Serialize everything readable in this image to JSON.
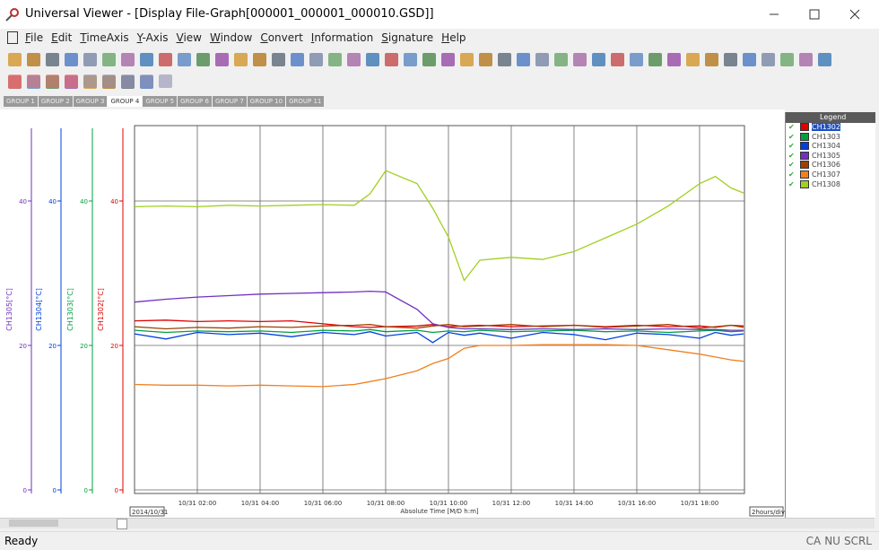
{
  "window_title": "Universal Viewer - [Display File-Graph[000001_000001_000010.GSD]]",
  "menu": [
    "File",
    "Edit",
    "TimeAxis",
    "Y-Axis",
    "View",
    "Window",
    "Convert",
    "Information",
    "Signature",
    "Help"
  ],
  "tabs": [
    "GROUP 1",
    "GROUP 2",
    "GROUP 3",
    "GROUP 4",
    "GROUP 5",
    "GROUP 6",
    "GROUP 7",
    "GROUP 10",
    "GROUP 11"
  ],
  "active_tab": 3,
  "status": {
    "text": "Ready",
    "indicators": [
      "CA",
      "NU",
      "SCRL"
    ]
  },
  "chart_data": {
    "type": "line",
    "x_label": "Absolute Time [M/D h:m]",
    "start_date": "2014/10/31",
    "scale_label": "2hours/div",
    "legend_title": "Legend",
    "x": [
      0,
      1,
      2,
      3,
      4,
      5,
      6,
      7,
      7.5,
      8,
      9,
      9.5,
      10,
      10.5,
      11,
      12,
      13,
      14,
      15,
      16,
      17,
      18,
      18.5,
      19,
      19.4
    ],
    "xlim": [
      0,
      19.43
    ],
    "xticks": [
      {
        "value": 2,
        "label": "10/31 02:00"
      },
      {
        "value": 4,
        "label": "10/31 04:00"
      },
      {
        "value": 6,
        "label": "10/31 06:00"
      },
      {
        "value": 8,
        "label": "10/31 08:00"
      },
      {
        "value": 10,
        "label": "10/31 10:00"
      },
      {
        "value": 12,
        "label": "10/31 12:00"
      },
      {
        "value": 14,
        "label": "10/31 14:00"
      },
      {
        "value": 16,
        "label": "10/31 16:00"
      },
      {
        "value": 18,
        "label": "10/31 18:00"
      }
    ],
    "ylim": [
      0,
      50
    ],
    "yticks": [
      0,
      20,
      40
    ],
    "grid": true,
    "y_axes": [
      {
        "label": "CH1305[°C]",
        "color": "#7030c0",
        "yticks": [
          0,
          20,
          40
        ]
      },
      {
        "label": "CH1304[°C]",
        "color": "#0040e0",
        "yticks": [
          0,
          20,
          40
        ]
      },
      {
        "label": "CH1303[°C]",
        "color": "#00a040",
        "yticks": [
          0,
          20,
          40
        ]
      },
      {
        "label": "CH1302[°C]",
        "color": "#e00000",
        "yticks": [
          0,
          20,
          40
        ]
      }
    ],
    "series": [
      {
        "name": "CH1302",
        "color": "#e00000",
        "values": [
          23.4,
          23.5,
          23.3,
          23.4,
          23.3,
          23.4,
          23,
          22.6,
          22.5,
          22.6,
          22.7,
          22.9,
          22.6,
          22.7,
          22.8,
          22.6,
          22.7,
          22.8,
          22.6,
          22.8,
          22.6,
          22.7,
          22.5,
          22.8,
          22.7
        ]
      },
      {
        "name": "CH1303",
        "color": "#00a040",
        "values": [
          22.1,
          21.8,
          22.0,
          21.9,
          22.0,
          21.8,
          22.1,
          22.0,
          22.2,
          21.9,
          22.1,
          21.8,
          22.0,
          21.9,
          22.1,
          21.9,
          22.0,
          22.1,
          21.9,
          22.0,
          21.8,
          22.0,
          22.1,
          21.9,
          22.0
        ]
      },
      {
        "name": "CH1304",
        "color": "#0040e0",
        "values": [
          21.6,
          20.9,
          21.8,
          21.5,
          21.7,
          21.2,
          21.8,
          21.5,
          21.9,
          21.3,
          21.8,
          20.4,
          21.8,
          21.4,
          21.7,
          21.0,
          21.8,
          21.5,
          20.8,
          21.7,
          21.5,
          21.0,
          21.8,
          21.4,
          21.6
        ]
      },
      {
        "name": "CH1305",
        "color": "#7030c0",
        "values": [
          26,
          26.4,
          26.7,
          26.9,
          27.1,
          27.2,
          27.3,
          27.4,
          27.5,
          27.4,
          25,
          23,
          22.5,
          22.3,
          22.3,
          22.2,
          22.3,
          22.2,
          22.3,
          22.2,
          22.3,
          22.2,
          22.2,
          22.1,
          22.1
        ]
      },
      {
        "name": "CH1306",
        "color": "#a04000",
        "values": [
          22.6,
          22.3,
          22.5,
          22.4,
          22.6,
          22.5,
          22.7,
          22.8,
          22.9,
          22.6,
          22.4,
          22.7,
          22.9,
          22.6,
          22.7,
          22.9,
          22.6,
          22.8,
          22.5,
          22.7,
          22.9,
          22.4,
          22.6,
          22.8,
          22.5
        ]
      },
      {
        "name": "CH1307",
        "color": "#f08020",
        "values": [
          14.6,
          14.5,
          14.5,
          14.4,
          14.5,
          14.4,
          14.3,
          14.6,
          15,
          15.4,
          16.5,
          17.5,
          18.2,
          19.6,
          20,
          20,
          20.1,
          20.1,
          20.1,
          20,
          19.4,
          18.8,
          18.4,
          18,
          17.8
        ]
      },
      {
        "name": "CH1308",
        "color": "#a0d020",
        "values": [
          39.2,
          39.3,
          39.2,
          39.4,
          39.3,
          39.4,
          39.5,
          39.4,
          41,
          44.2,
          42.4,
          39,
          35,
          29,
          31.8,
          32.2,
          31.9,
          33,
          34.9,
          36.8,
          39.3,
          42.4,
          43.4,
          41.8,
          41.1
        ]
      }
    ]
  }
}
